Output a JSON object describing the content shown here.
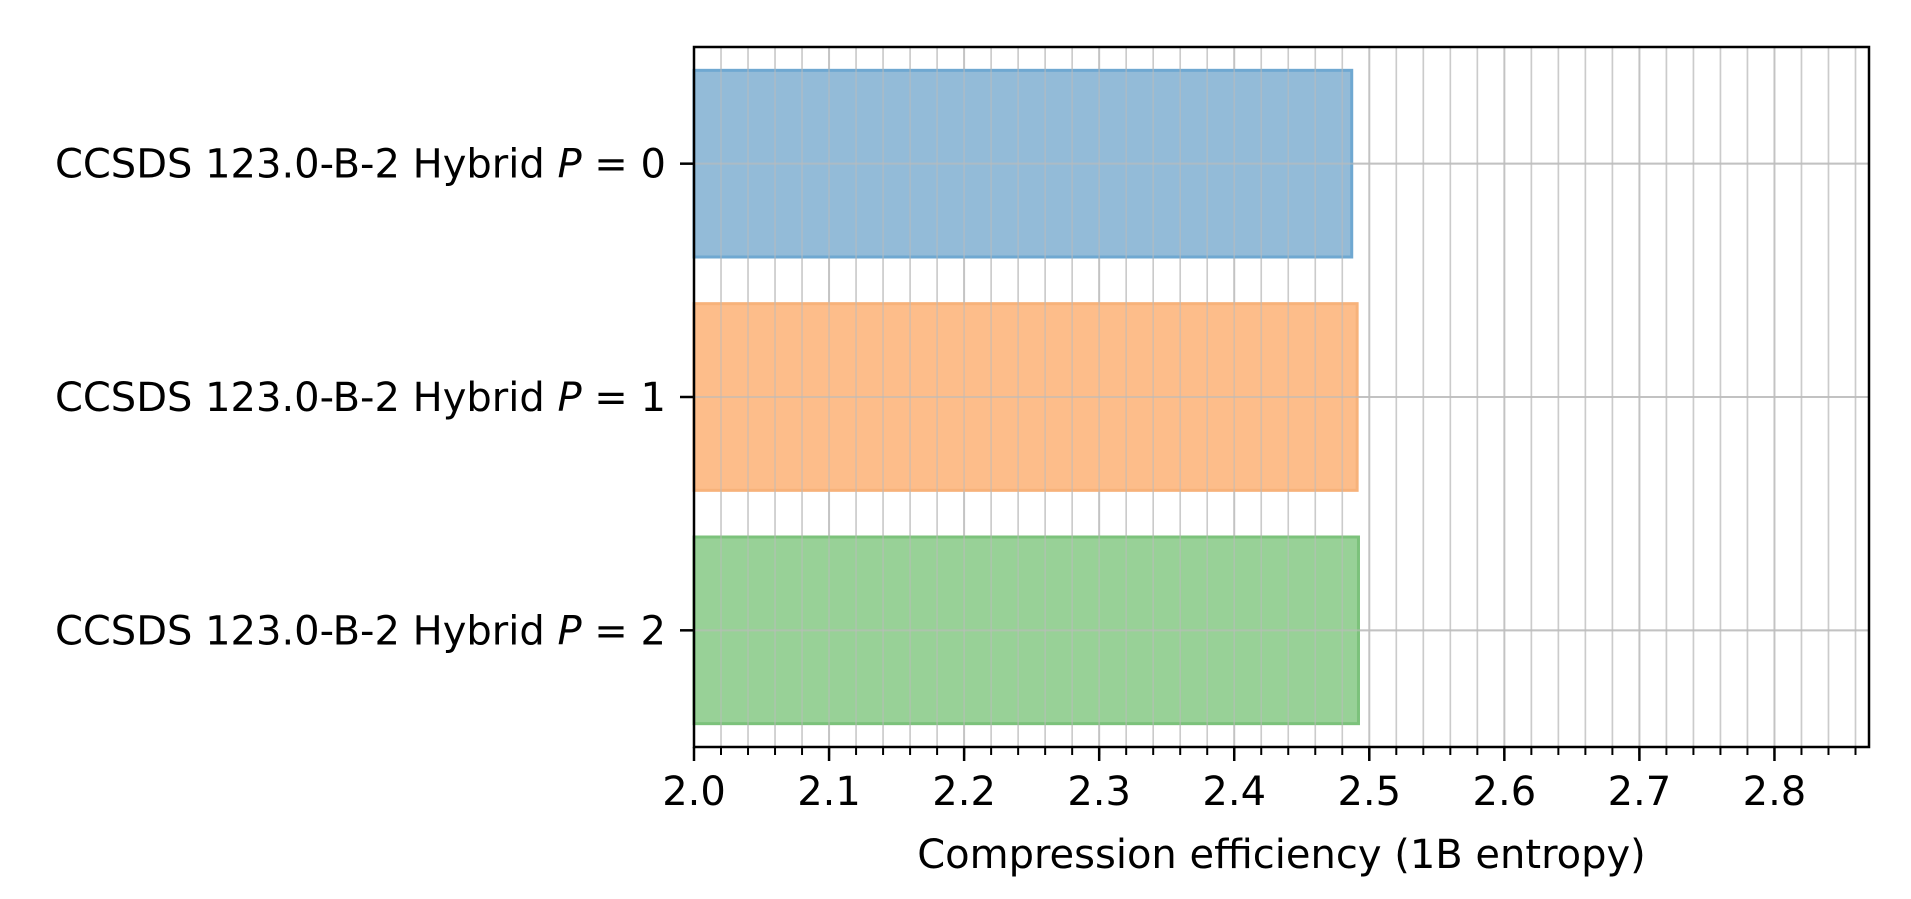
{
  "chart_data": {
    "type": "bar",
    "orientation": "horizontal",
    "title": "",
    "xlabel": "Compression efficiency (1B entropy)",
    "ylabel": "",
    "xlim": [
      2.0,
      2.87
    ],
    "categories": [
      {
        "prefix": "CCSDS 123.0-B-2 Hybrid ",
        "var": "P",
        "rest": " = 0"
      },
      {
        "prefix": "CCSDS 123.0-B-2 Hybrid ",
        "var": "P",
        "rest": " = 1"
      },
      {
        "prefix": "CCSDS 123.0-B-2 Hybrid ",
        "var": "P",
        "rest": " = 2"
      }
    ],
    "values": [
      2.487,
      2.491,
      2.492
    ],
    "colors": [
      "#93bbd8",
      "#fdbd8a",
      "#98d197"
    ],
    "edge_colors": [
      "#6fa8d1",
      "#f7b27a",
      "#7cc27b"
    ],
    "grid": {
      "major": true,
      "minor": true,
      "major_color": "#cccccc",
      "minor_color": "#dddddd"
    },
    "x_major_ticks": [
      2.0,
      2.1,
      2.2,
      2.3,
      2.4,
      2.5,
      2.6,
      2.7,
      2.8
    ],
    "x_tick_labels": [
      "2.0",
      "2.1",
      "2.2",
      "2.3",
      "2.4",
      "2.5",
      "2.6",
      "2.7",
      "2.8"
    ],
    "x_minor_step": 0.02
  }
}
